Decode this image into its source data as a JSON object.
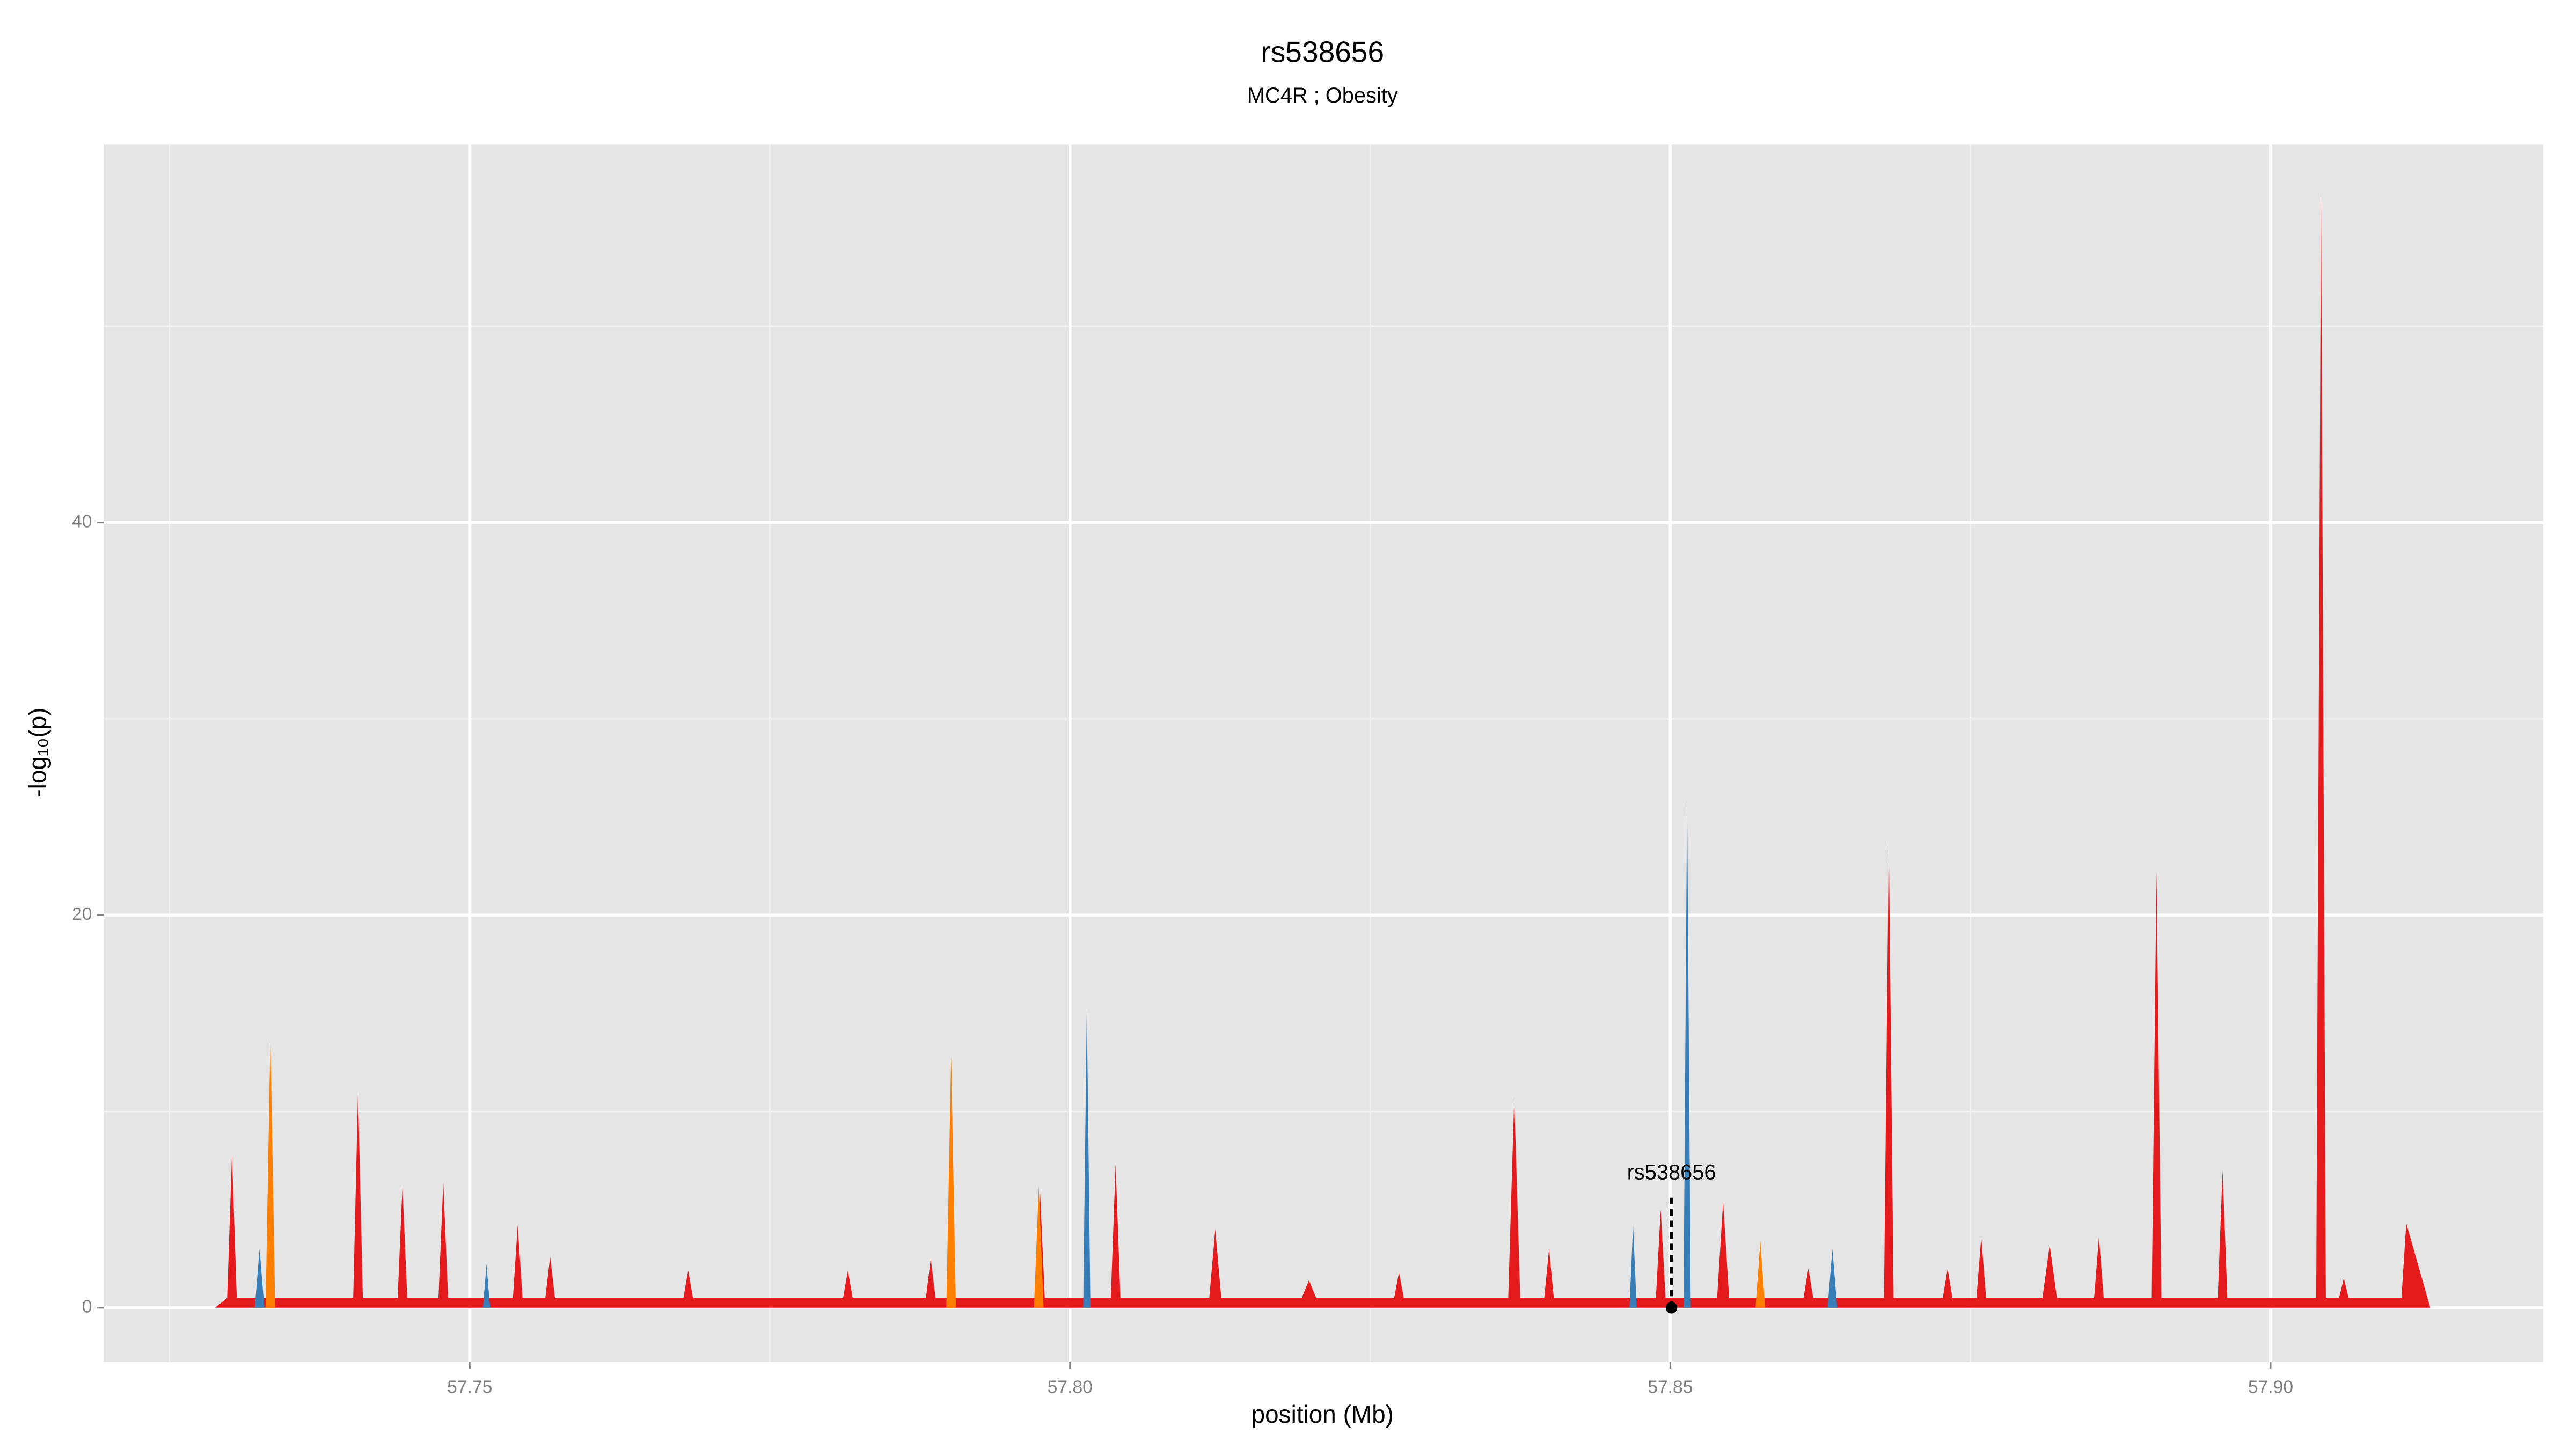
{
  "chart_data": {
    "type": "area",
    "title": "rs538656",
    "subtitle": "MC4R ; Obesity",
    "x_label": "position (Mb)",
    "y_label": "-log₁₀(p)",
    "xlim": [
      57.7195,
      57.9227
    ],
    "ylim": [
      -2.76,
      59.25
    ],
    "xticks": [
      57.75,
      {
        "value": 57.8,
        "label": "57.80"
      },
      57.85,
      {
        "value": 57.9,
        "label": "57.90"
      }
    ],
    "yticks": [
      0,
      20,
      40
    ],
    "minor_xticks": [
      57.725,
      57.775,
      57.825,
      57.875
    ],
    "minor_yticks": [
      10,
      30,
      50
    ],
    "grid": true,
    "series": [
      {
        "color": "#e41a1c",
        "x": [
          57.7288,
          57.7298,
          57.7302,
          57.7306,
          57.7403,
          57.7407,
          57.7411,
          57.744,
          57.7444,
          57.7448,
          57.7474,
          57.7478,
          57.7482,
          57.7536,
          57.754,
          57.7544,
          57.7563,
          57.7567,
          57.7571,
          57.7678,
          57.7682,
          57.7686,
          57.7811,
          57.7815,
          57.7819,
          57.788,
          57.7884,
          57.7888,
          57.7971,
          57.7975,
          57.7979,
          57.8034,
          57.8038,
          57.8042,
          57.8116,
          57.8121,
          57.8126,
          57.8193,
          57.8199,
          57.8205,
          57.827,
          57.8274,
          57.8278,
          57.8365,
          57.837,
          57.8375,
          57.8395,
          57.8399,
          57.8403,
          57.8488,
          57.8492,
          57.8496,
          57.8539,
          57.8544,
          57.8549,
          57.8611,
          57.8615,
          57.8619,
          57.8678,
          57.8682,
          57.8686,
          57.8727,
          57.8731,
          57.8735,
          57.8755,
          57.8759,
          57.8763,
          57.881,
          57.8816,
          57.8822,
          57.8853,
          57.8857,
          57.8861,
          57.8901,
          57.8905,
          57.8909,
          57.8956,
          57.896,
          57.8964,
          57.9038,
          57.9042,
          57.9046,
          57.9057,
          57.9061,
          57.9065,
          57.9109,
          57.9113,
          57.9133
        ],
        "values": [
          0,
          0.5,
          7.8,
          0.5,
          0.5,
          11,
          0.5,
          0.5,
          6.2,
          0.5,
          0.5,
          6.4,
          0.5,
          0.5,
          4.2,
          0.5,
          0.5,
          2.6,
          0.5,
          0.5,
          1.9,
          0.5,
          0.5,
          1.9,
          0.5,
          0.5,
          2.5,
          0.5,
          0.5,
          6,
          0.5,
          0.5,
          7.3,
          0.5,
          0.5,
          4,
          0.5,
          0.5,
          1.4,
          0.5,
          0.5,
          1.8,
          0.5,
          0.5,
          10.7,
          0.5,
          0.5,
          3,
          0.5,
          0.5,
          5,
          0.5,
          0.5,
          5.4,
          0.5,
          0.5,
          2,
          0.5,
          0.5,
          23.8,
          0.5,
          0.5,
          2,
          0.5,
          0.5,
          3.6,
          0.5,
          0.5,
          3.2,
          0.5,
          0.5,
          3.6,
          0.5,
          0.5,
          22.2,
          0.5,
          0.5,
          7,
          0.5,
          0.5,
          56.8,
          0.5,
          0.5,
          1.5,
          0.5,
          0.5,
          4.3,
          0
        ]
      },
      {
        "color": "#ff7f00",
        "x": [
          57.733,
          57.7334,
          57.7338,
          57.7897,
          57.7901,
          57.7905,
          57.797,
          57.7974,
          57.7978,
          57.8571,
          57.8575,
          57.8579
        ],
        "values": [
          0,
          13.7,
          0,
          0,
          12.8,
          0,
          0,
          6.2,
          0,
          0,
          3.4,
          0
        ]
      },
      {
        "color": "#377eb8",
        "x": [
          57.7321,
          57.7325,
          57.7329,
          57.7511,
          57.7514,
          57.7517,
          57.8011,
          57.8014,
          57.8017,
          57.8466,
          57.8469,
          57.8472,
          57.8511,
          57.8514,
          57.8517,
          57.8631,
          57.8635,
          57.8639
        ],
        "values": [
          0,
          3,
          0,
          0,
          2.2,
          0,
          0,
          15.3,
          0,
          0,
          4.2,
          0,
          0,
          26,
          0,
          0,
          3,
          0
        ]
      }
    ],
    "annotation": {
      "label": "rs538656",
      "x": 57.8501,
      "y": 0,
      "label_y": 7
    }
  }
}
